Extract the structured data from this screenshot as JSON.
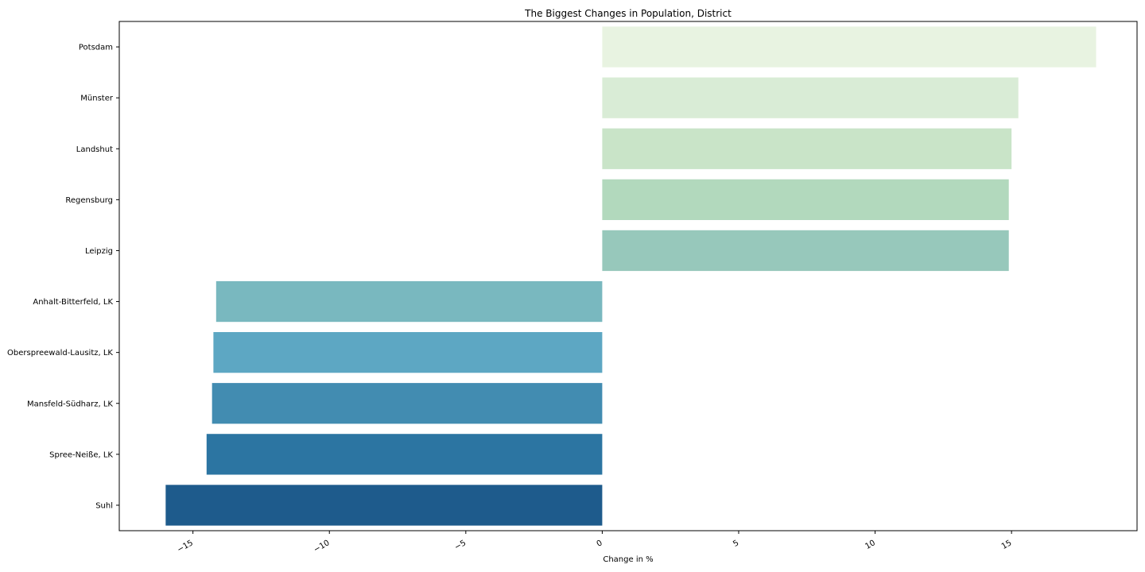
{
  "chart_data": {
    "type": "bar",
    "orientation": "horizontal",
    "title": "The Biggest Changes in Population, District",
    "xlabel": "Change in %",
    "ylabel": "",
    "xlim": [
      -17.7,
      19.6
    ],
    "xticks": [
      -15,
      -10,
      -5,
      0,
      5,
      10,
      15
    ],
    "xtick_labels": [
      "−15",
      "−10",
      "−5",
      "0",
      "5",
      "10",
      "15"
    ],
    "grid": false,
    "categories": [
      "Potsdam",
      "Münster",
      "Landshut",
      "Regensburg",
      "Leipzig",
      "Anhalt-Bitterfeld, LK",
      "Oberspreewald-Lausitz, LK",
      "Mansfeld-Südharz, LK",
      "Spree-Neiße, LK",
      "Suhl"
    ],
    "values": [
      18.1,
      15.25,
      15.0,
      14.9,
      14.9,
      -14.15,
      -14.25,
      -14.3,
      -14.5,
      -16.0
    ],
    "colors": [
      "#e8f3e1",
      "#d9ecd6",
      "#c9e4c8",
      "#b2d9bd",
      "#97c8bb",
      "#79b8bf",
      "#5da7c3",
      "#428cb1",
      "#2c75a2",
      "#1e5b8c"
    ]
  }
}
